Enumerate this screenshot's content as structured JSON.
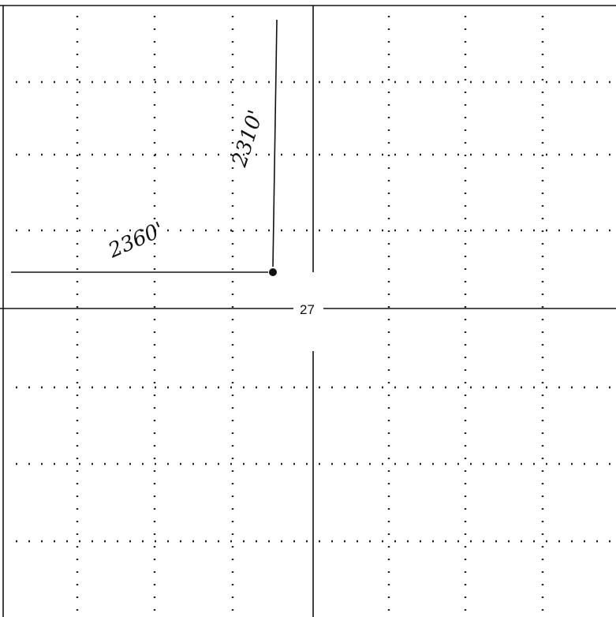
{
  "labels": {
    "north_distance": "2310'",
    "west_distance": "2360'",
    "section": "27"
  }
}
